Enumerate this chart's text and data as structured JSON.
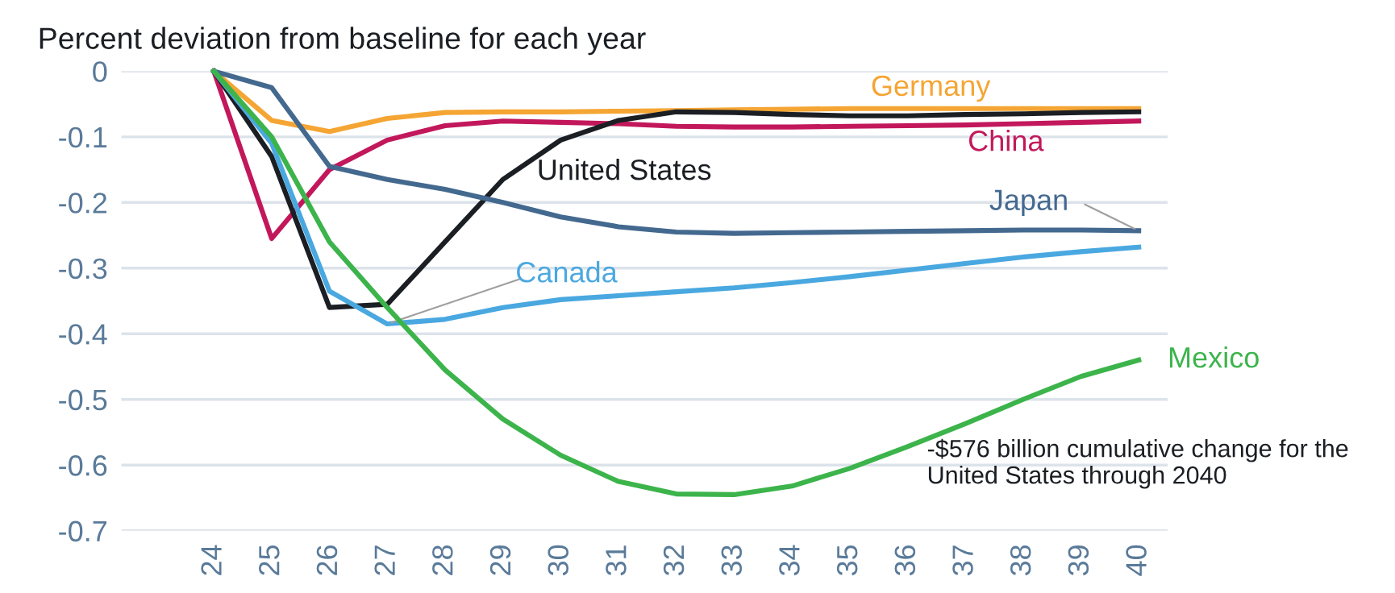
{
  "chart_data": {
    "type": "line",
    "title": "Percent deviation from baseline for each year",
    "categories": [
      "24",
      "25",
      "26",
      "27",
      "28",
      "29",
      "30",
      "31",
      "32",
      "33",
      "34",
      "35",
      "36",
      "37",
      "38",
      "39",
      "40"
    ],
    "series": [
      {
        "name": "Germany",
        "color": "#f5a533",
        "values": [
          0,
          -0.075,
          -0.092,
          -0.072,
          -0.063,
          -0.062,
          -0.062,
          -0.061,
          -0.06,
          -0.059,
          -0.058,
          -0.057,
          -0.057,
          -0.057,
          -0.057,
          -0.057,
          -0.057
        ]
      },
      {
        "name": "China",
        "color": "#c2185b",
        "values": [
          0,
          -0.255,
          -0.15,
          -0.105,
          -0.083,
          -0.076,
          -0.078,
          -0.08,
          -0.084,
          -0.085,
          -0.085,
          -0.084,
          -0.083,
          -0.082,
          -0.08,
          -0.078,
          -0.076
        ]
      },
      {
        "name": "United States",
        "color": "#1b1f24",
        "values": [
          0,
          -0.13,
          -0.36,
          -0.355,
          -0.26,
          -0.165,
          -0.105,
          -0.075,
          -0.062,
          -0.063,
          -0.066,
          -0.068,
          -0.068,
          -0.066,
          -0.065,
          -0.063,
          -0.062
        ]
      },
      {
        "name": "Japan",
        "color": "#44698f",
        "values": [
          0,
          -0.025,
          -0.145,
          -0.165,
          -0.18,
          -0.2,
          -0.222,
          -0.237,
          -0.245,
          -0.247,
          -0.246,
          -0.245,
          -0.244,
          -0.243,
          -0.242,
          -0.242,
          -0.243
        ]
      },
      {
        "name": "Canada",
        "color": "#4aa8e0",
        "values": [
          0,
          -0.11,
          -0.335,
          -0.385,
          -0.378,
          -0.36,
          -0.348,
          -0.342,
          -0.336,
          -0.33,
          -0.322,
          -0.313,
          -0.303,
          -0.293,
          -0.283,
          -0.275,
          -0.268
        ]
      },
      {
        "name": "Mexico",
        "color": "#3cb44b",
        "values": [
          0,
          -0.1,
          -0.26,
          -0.36,
          -0.455,
          -0.53,
          -0.585,
          -0.625,
          -0.644,
          -0.645,
          -0.632,
          -0.605,
          -0.572,
          -0.537,
          -0.5,
          -0.465,
          -0.44
        ]
      }
    ],
    "ylim": [
      -0.7,
      0
    ],
    "yticks": [
      0,
      -0.1,
      -0.2,
      -0.3,
      -0.4,
      -0.5,
      -0.6,
      -0.7
    ],
    "grid": "y",
    "legend": false,
    "marker": "none",
    "line_style": "solid",
    "annotations": [
      "-$576 billion cumulative change for the United States through 2040"
    ]
  }
}
